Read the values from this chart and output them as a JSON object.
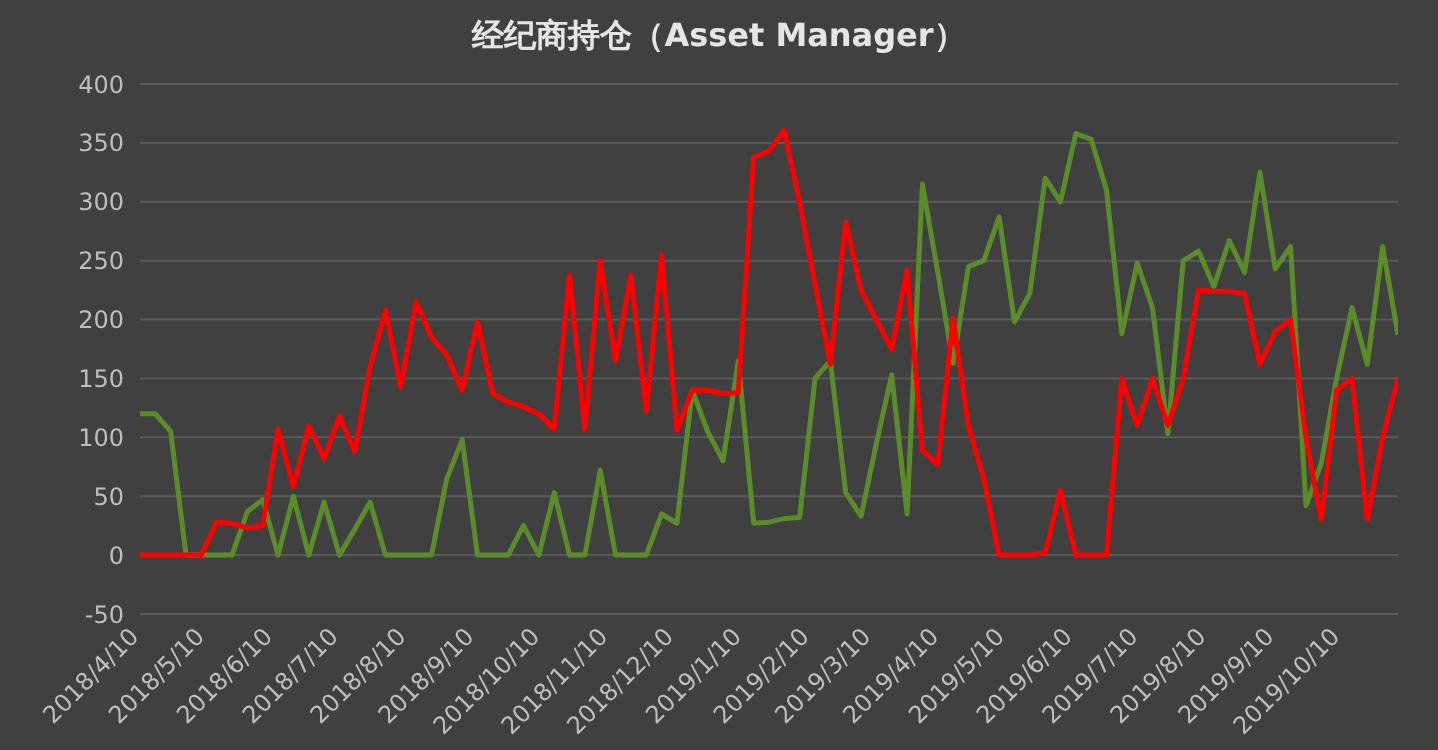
{
  "chart_data": {
    "type": "line",
    "title": "经纪商持仓（Asset Manager）",
    "x": [
      "2018-04-10",
      "2018-04-17",
      "2018-04-24",
      "2018-05-01",
      "2018-05-08",
      "2018-05-15",
      "2018-05-22",
      "2018-05-29",
      "2018-06-05",
      "2018-06-12",
      "2018-06-19",
      "2018-06-26",
      "2018-07-03",
      "2018-07-10",
      "2018-07-17",
      "2018-07-24",
      "2018-07-31",
      "2018-08-07",
      "2018-08-14",
      "2018-08-21",
      "2018-08-28",
      "2018-09-04",
      "2018-09-11",
      "2018-09-18",
      "2018-09-25",
      "2018-10-02",
      "2018-10-09",
      "2018-10-16",
      "2018-10-23",
      "2018-10-30",
      "2018-11-06",
      "2018-11-13",
      "2018-11-20",
      "2018-11-27",
      "2018-12-04",
      "2018-12-11",
      "2018-12-18",
      "2018-12-25",
      "2019-01-01",
      "2019-01-08",
      "2019-01-15",
      "2019-01-22",
      "2019-01-29",
      "2019-02-05",
      "2019-02-12",
      "2019-02-19",
      "2019-02-26",
      "2019-03-05",
      "2019-03-12",
      "2019-03-19",
      "2019-03-26",
      "2019-04-02",
      "2019-04-09",
      "2019-04-16",
      "2019-04-23",
      "2019-04-30",
      "2019-05-07",
      "2019-05-14",
      "2019-05-21",
      "2019-05-28",
      "2019-06-04",
      "2019-06-11",
      "2019-06-18",
      "2019-06-25",
      "2019-07-02",
      "2019-07-09",
      "2019-07-16",
      "2019-07-23",
      "2019-07-30",
      "2019-08-06",
      "2019-08-13",
      "2019-08-20",
      "2019-08-27",
      "2019-09-03",
      "2019-09-10",
      "2019-09-17",
      "2019-09-24",
      "2019-10-01",
      "2019-10-08",
      "2019-10-15",
      "2019-10-22",
      "2019-10-29",
      "2019-11-05"
    ],
    "series": [
      {
        "color": "#5b8c2a",
        "values": [
          120,
          120,
          105,
          0,
          0,
          0,
          0,
          37,
          47,
          0,
          50,
          0,
          45,
          0,
          22,
          45,
          0,
          0,
          0,
          0,
          65,
          98,
          0,
          0,
          0,
          25,
          0,
          53,
          0,
          0,
          72,
          0,
          0,
          0,
          35,
          27,
          140,
          105,
          80,
          165,
          27,
          28,
          31,
          32,
          150,
          165,
          53,
          33,
          95,
          153,
          35,
          315,
          240,
          163,
          245,
          250,
          287,
          198,
          222,
          320,
          300,
          358,
          353,
          310,
          188,
          248,
          210,
          103,
          250,
          258,
          228,
          267,
          240,
          325,
          243,
          262,
          42,
          78,
          150,
          210,
          162,
          262,
          187
        ]
      },
      {
        "color": "#ff0000",
        "values": [
          0,
          0,
          0,
          0,
          0,
          28,
          27,
          23,
          25,
          107,
          58,
          110,
          82,
          118,
          88,
          160,
          208,
          143,
          215,
          185,
          170,
          140,
          198,
          137,
          130,
          126,
          120,
          107,
          238,
          107,
          250,
          165,
          238,
          122,
          255,
          106,
          140,
          140,
          137,
          138,
          338,
          343,
          361,
          300,
          230,
          162,
          283,
          225,
          200,
          175,
          242,
          89,
          77,
          201,
          110,
          65,
          0,
          0,
          0,
          2,
          55,
          0,
          0,
          0,
          150,
          110,
          150,
          110,
          150,
          225,
          224,
          224,
          222,
          162,
          190,
          200,
          100,
          30,
          140,
          150,
          30,
          100,
          150
        ]
      }
    ],
    "xlim": [
      "2018-04-10",
      "2019-11-05"
    ],
    "xticks": [
      {
        "value": "2018-04-10",
        "label": "2018/4/10"
      },
      {
        "value": "2018-05-10",
        "label": "2018/5/10"
      },
      {
        "value": "2018-06-10",
        "label": "2018/6/10"
      },
      {
        "value": "2018-07-10",
        "label": "2018/7/10"
      },
      {
        "value": "2018-08-10",
        "label": "2018/8/10"
      },
      {
        "value": "2018-09-10",
        "label": "2018/9/10"
      },
      {
        "value": "2018-10-10",
        "label": "2018/10/10"
      },
      {
        "value": "2018-11-10",
        "label": "2018/11/10"
      },
      {
        "value": "2018-12-10",
        "label": "2018/12/10"
      },
      {
        "value": "2019-01-10",
        "label": "2019/1/10"
      },
      {
        "value": "2019-02-10",
        "label": "2019/2/10"
      },
      {
        "value": "2019-03-10",
        "label": "2019/3/10"
      },
      {
        "value": "2019-04-10",
        "label": "2019/4/10"
      },
      {
        "value": "2019-05-10",
        "label": "2019/5/10"
      },
      {
        "value": "2019-06-10",
        "label": "2019/6/10"
      },
      {
        "value": "2019-07-10",
        "label": "2019/7/10"
      },
      {
        "value": "2019-08-10",
        "label": "2019/8/10"
      },
      {
        "value": "2019-09-10",
        "label": "2019/9/10"
      },
      {
        "value": "2019-10-10",
        "label": "2019/10/10"
      }
    ],
    "ylim": [
      -50,
      400
    ],
    "yticks": [
      -50,
      0,
      50,
      100,
      150,
      200,
      250,
      300,
      350,
      400
    ],
    "grid": "y",
    "marker": "none",
    "line_style": "solid"
  }
}
